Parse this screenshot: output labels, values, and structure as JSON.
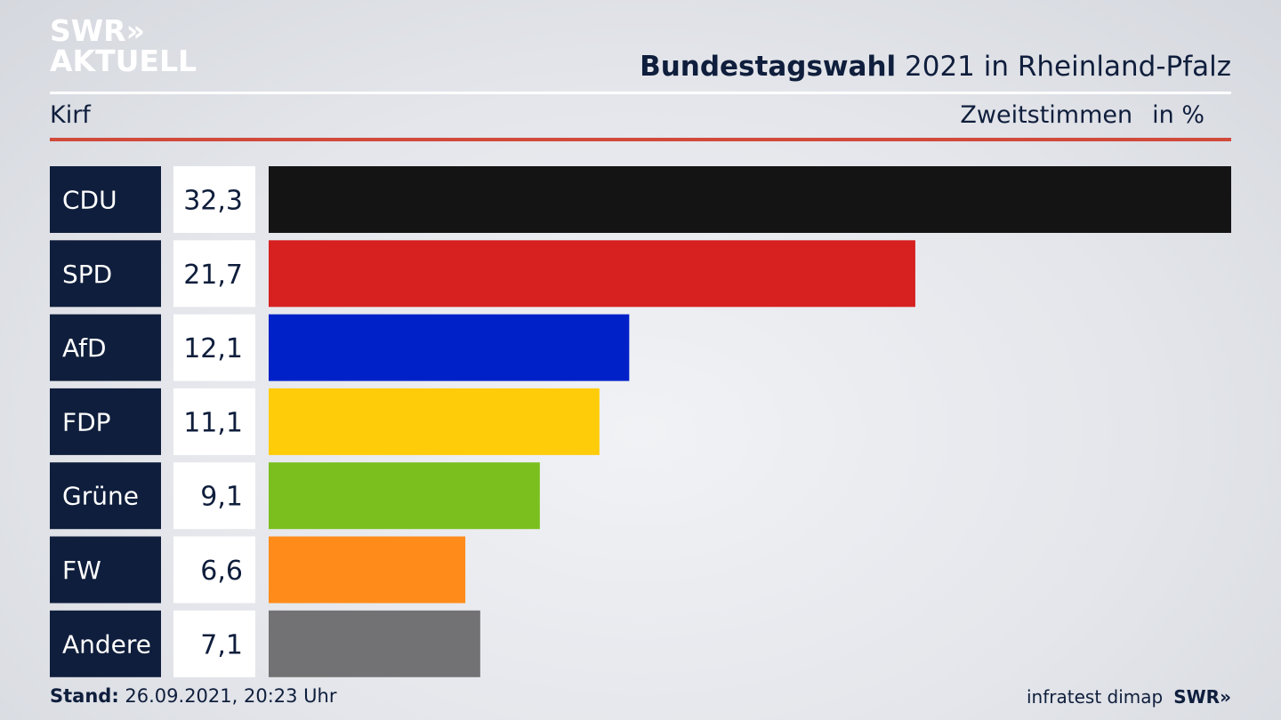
{
  "logo": {
    "line1": "SWR»",
    "line2": "AKTUELL"
  },
  "header": {
    "title_bold": "Bundestagswahl",
    "title_rest": " 2021 in Rheinland-Pfalz",
    "region": "Kirf",
    "measure": "Zweitstimmen",
    "unit": "in %"
  },
  "footer": {
    "stand_label": "Stand:",
    "stand_value": " 26.09.2021, 20:23 Uhr",
    "source": "infratest dimap",
    "brand": "SWR»"
  },
  "chart_data": {
    "type": "bar",
    "orientation": "horizontal",
    "categories": [
      "CDU",
      "SPD",
      "AfD",
      "FDP",
      "Grüne",
      "FW",
      "Andere"
    ],
    "values": [
      32.3,
      21.7,
      12.1,
      11.1,
      9.1,
      6.6,
      7.1
    ],
    "value_labels": [
      "32,3",
      "21,7",
      "12,1",
      "11,1",
      "9,1",
      "6,6",
      "7,1"
    ],
    "colors": [
      "#141414",
      "#d72020",
      "#0021c8",
      "#ffcc0a",
      "#7abf1e",
      "#ff8c1a",
      "#727274"
    ],
    "xlim": [
      0,
      32.3
    ],
    "grid": false
  }
}
